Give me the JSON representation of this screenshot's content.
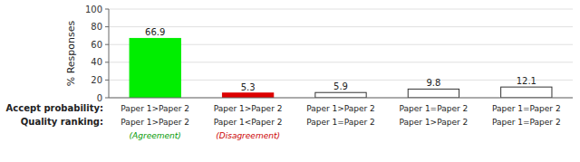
{
  "chart_data": {
    "type": "bar",
    "values": [
      66.9,
      5.3,
      5.9,
      9.8,
      12.1
    ],
    "colors": [
      "#00ee00",
      "#dd0000",
      "#ffffff",
      "#ffffff",
      "#ffffff"
    ],
    "ylabel": "% Responses",
    "ylim": [
      0,
      100
    ],
    "yticks": [
      0,
      20,
      40,
      60,
      80,
      100
    ],
    "grid": true,
    "data_labels": true,
    "tick_labels": "y",
    "x_label_rows": [
      {
        "label": "Accept probability:",
        "labels": [
          "Paper 1>Paper 2",
          "Paper 1>Paper 2",
          "Paper 1>Paper 2",
          "Paper 1=Paper 2",
          "Paper 1=Paper 2"
        ]
      },
      {
        "label": "Quality ranking:",
        "labels": [
          "Paper 1>Paper 2",
          "Paper 1<Paper 2",
          "Paper 1=Paper 2",
          "Paper 1>Paper 2",
          "Paper 1=Paper 2"
        ]
      },
      {
        "labels": [
          "(Agreement)",
          "(Disagreement)",
          null,
          null,
          null
        ],
        "colors": [
          "#009900",
          "#cc0000",
          null,
          null,
          null
        ]
      }
    ]
  }
}
